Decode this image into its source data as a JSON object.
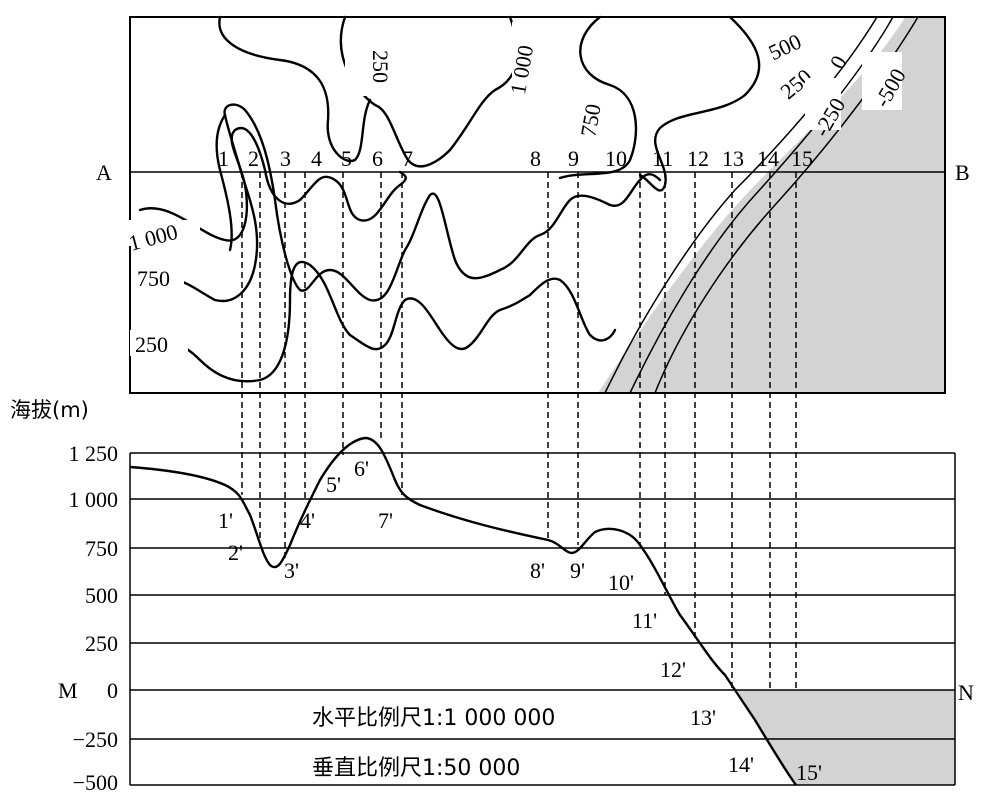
{
  "map": {
    "endpoint_a": "A",
    "endpoint_b": "B",
    "point_labels": [
      "1",
      "2",
      "3",
      "4",
      "5",
      "6",
      "7",
      "8",
      "9",
      "10",
      "11",
      "12",
      "13",
      "14",
      "15"
    ],
    "contour_labels": [
      "1 000",
      "750",
      "250",
      "250",
      "1 000",
      "750",
      "500",
      "250",
      "0",
      "-250",
      "-500"
    ]
  },
  "profile": {
    "axis_title": "海拔(m)",
    "y_ticks": [
      "1 250",
      "1 000",
      "750",
      "500",
      "250",
      "0",
      "−250",
      "−500"
    ],
    "m_label": "M",
    "n_label": "N",
    "point_labels": [
      "1'",
      "2'",
      "3'",
      "4'",
      "5'",
      "6'",
      "7'",
      "8'",
      "9'",
      "10'",
      "11'",
      "12'",
      "13'",
      "14'",
      "15'"
    ],
    "scale_horizontal": "水平比例尺1:1 000 000",
    "scale_vertical": "垂直比例尺1:50 000"
  },
  "colors": {
    "sea_fill": "#d3d3d3",
    "line": "#000000"
  }
}
